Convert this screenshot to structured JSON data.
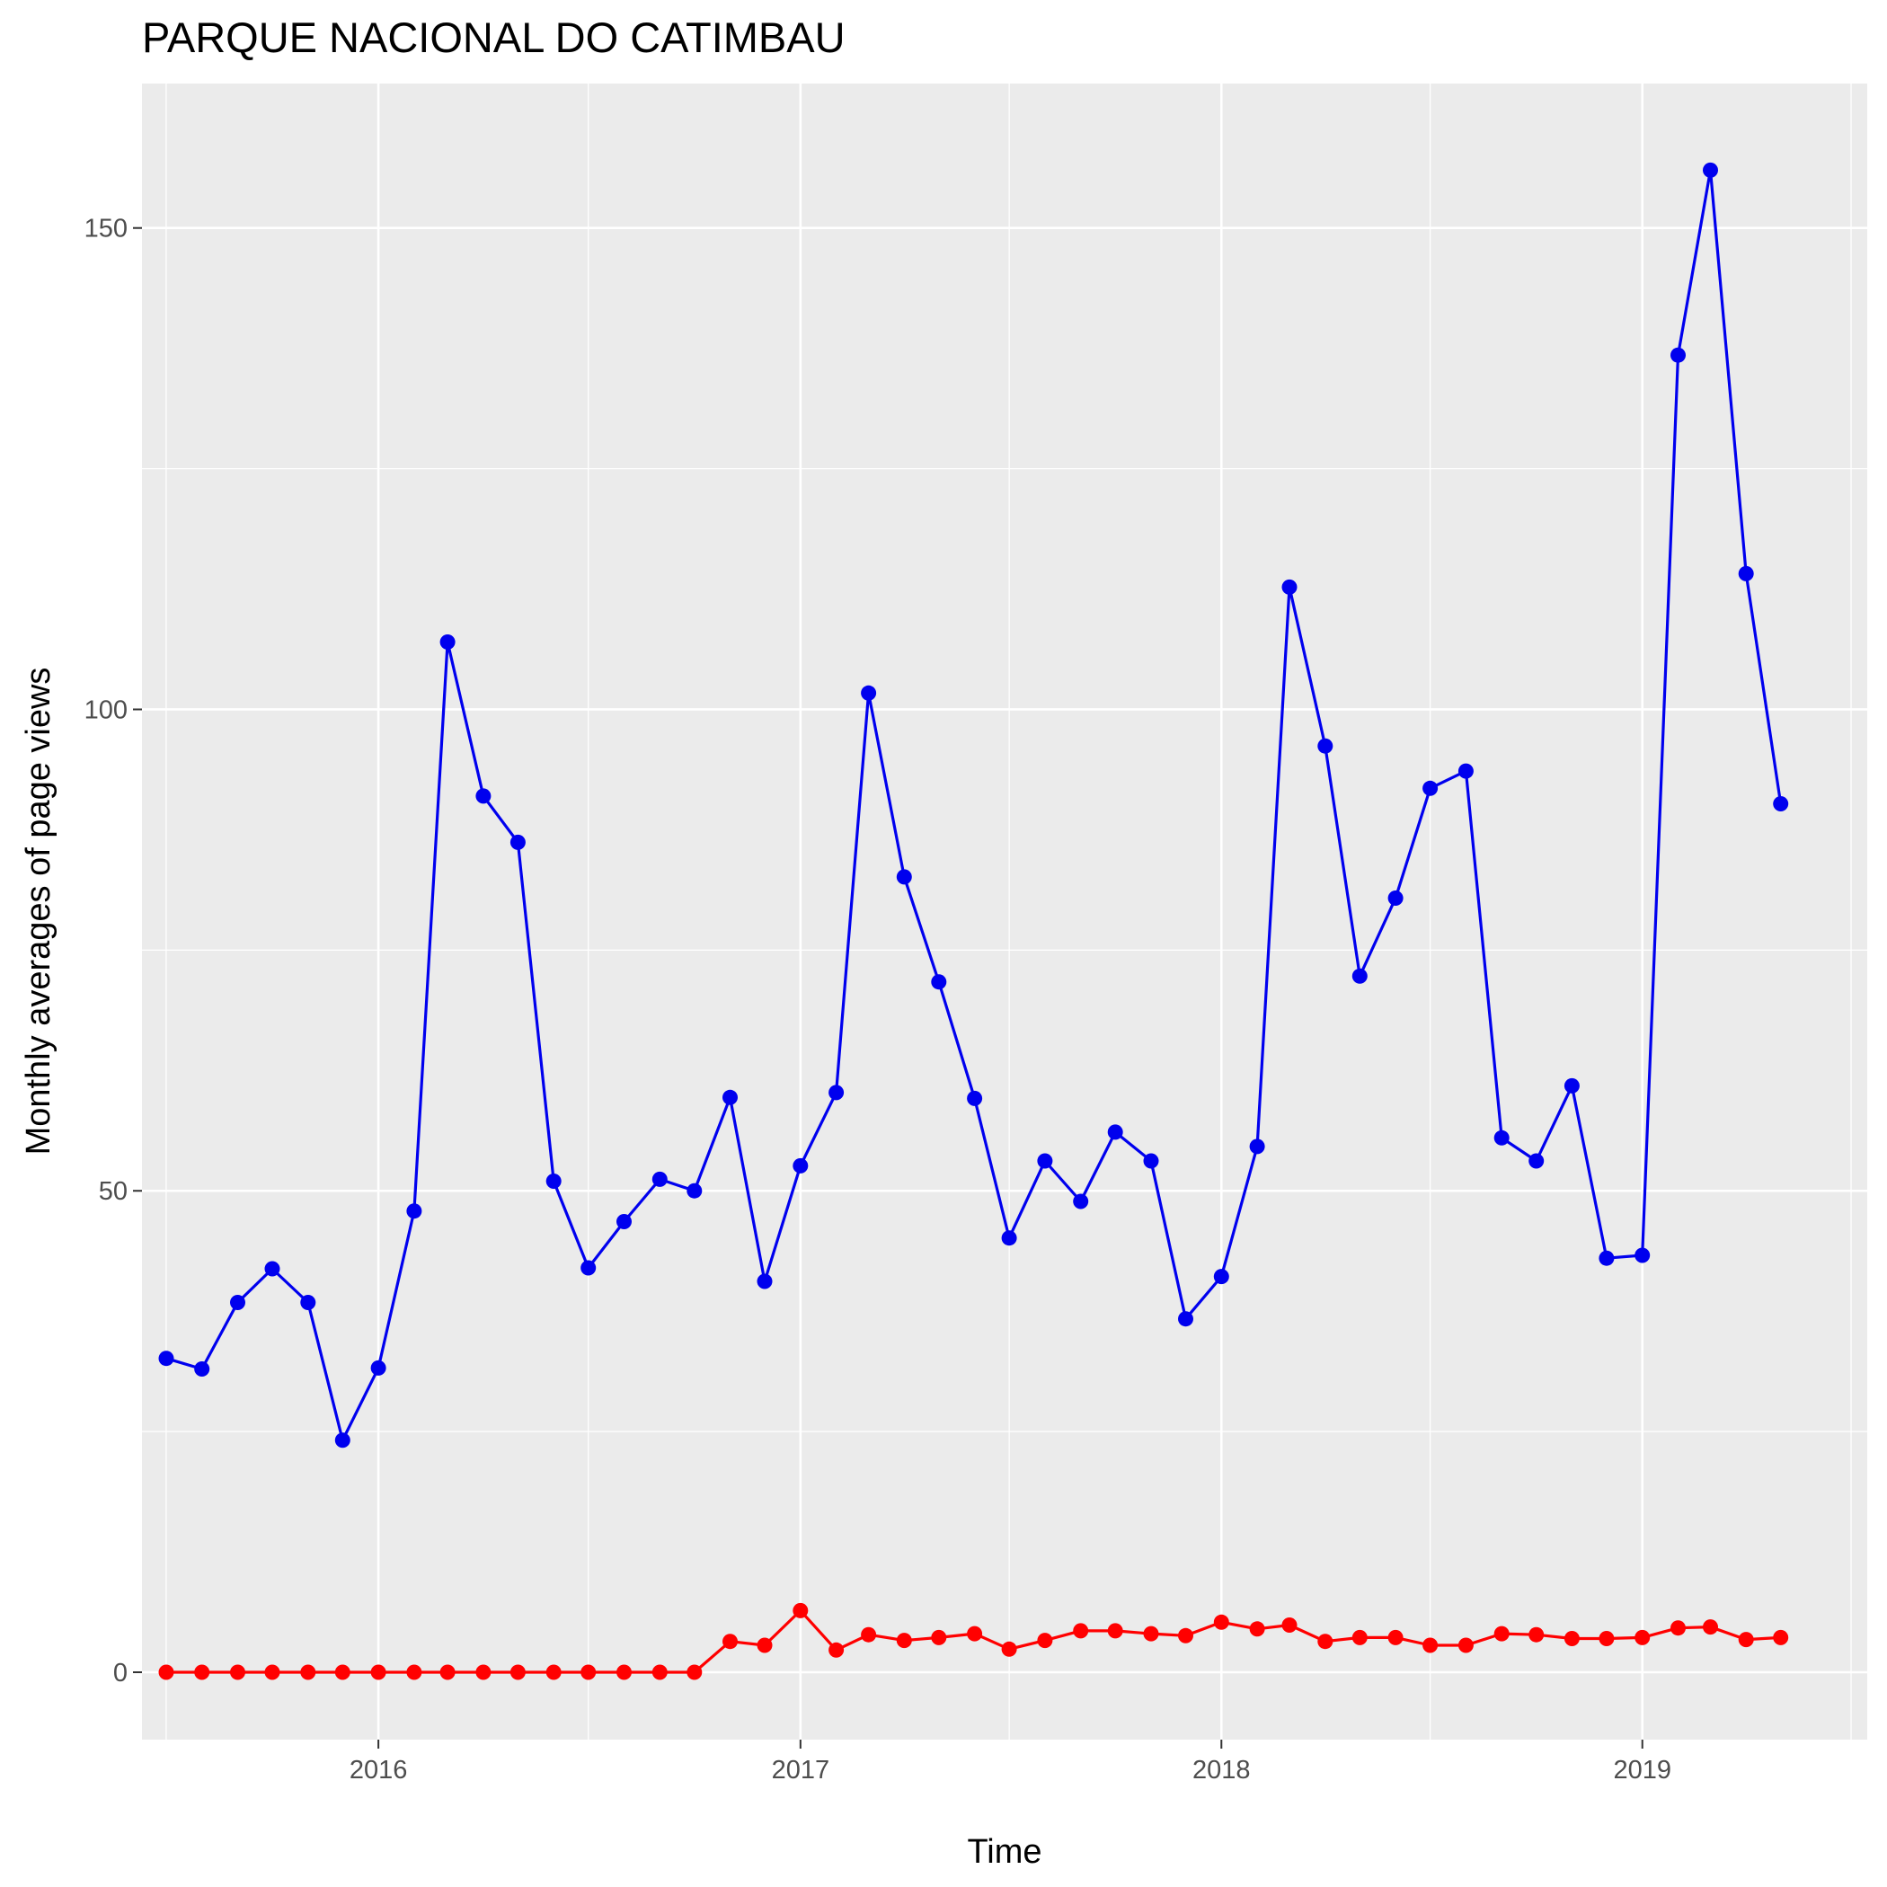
{
  "chart_data": {
    "type": "line",
    "title": "PARQUE NACIONAL DO CATIMBAU",
    "xlabel": "Time",
    "ylabel": "Monthly averages of page views",
    "x_ticks": [
      "2016",
      "2017",
      "2018",
      "2019"
    ],
    "y_ticks": [
      "0",
      "50",
      "100",
      "150"
    ],
    "ylim": [
      -7,
      165
    ],
    "xlim": [
      "2015-06-10",
      "2019-07-15"
    ],
    "grid": true,
    "legend": "none",
    "x": [
      "2015-07",
      "2015-08",
      "2015-09",
      "2015-10",
      "2015-11",
      "2015-12",
      "2016-01",
      "2016-02",
      "2016-03",
      "2016-04",
      "2016-05",
      "2016-06",
      "2016-07",
      "2016-08",
      "2016-09",
      "2016-10",
      "2016-11",
      "2016-12",
      "2017-01",
      "2017-02",
      "2017-03",
      "2017-04",
      "2017-05",
      "2017-06",
      "2017-07",
      "2017-08",
      "2017-09",
      "2017-10",
      "2017-11",
      "2017-12",
      "2018-01",
      "2018-02",
      "2018-03",
      "2018-04",
      "2018-05",
      "2018-06",
      "2018-07",
      "2018-08",
      "2018-09",
      "2018-10",
      "2018-11",
      "2018-12",
      "2019-01",
      "2019-02",
      "2019-03",
      "2019-04",
      "2019-05"
    ],
    "series": [
      {
        "color": "#0000ee",
        "values": [
          32.6,
          31.5,
          38.4,
          41.9,
          38.4,
          24.1,
          31.6,
          47.9,
          107.0,
          91.0,
          86.2,
          51.0,
          42.0,
          46.8,
          51.2,
          50.0,
          59.7,
          40.6,
          52.6,
          60.2,
          101.7,
          82.6,
          71.7,
          59.6,
          45.1,
          53.1,
          48.9,
          56.1,
          53.1,
          36.7,
          41.1,
          54.6,
          112.7,
          96.2,
          72.3,
          80.4,
          91.8,
          93.6,
          55.5,
          53.1,
          60.9,
          43.0,
          43.3,
          136.8,
          156.0,
          114.1,
          90.2
        ]
      },
      {
        "color": "#ff0000",
        "values": [
          0,
          0,
          0,
          0,
          0,
          0,
          0,
          0,
          0,
          0,
          0,
          0,
          0,
          0,
          0,
          0,
          3.2,
          2.8,
          6.4,
          2.3,
          3.9,
          3.3,
          3.6,
          4.0,
          2.4,
          3.3,
          4.3,
          4.3,
          4.0,
          3.8,
          5.2,
          4.5,
          4.9,
          3.2,
          3.6,
          3.6,
          2.8,
          2.8,
          4.0,
          3.9,
          3.5,
          3.5,
          3.6,
          4.6,
          4.7,
          3.4,
          3.6
        ]
      }
    ]
  }
}
